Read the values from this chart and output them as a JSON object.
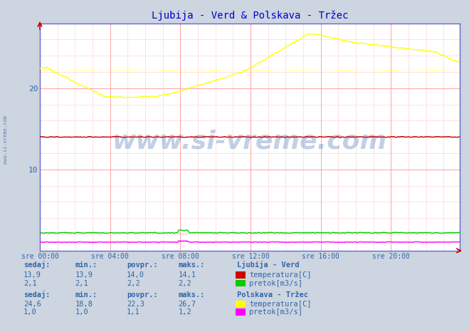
{
  "title": "Ljubija - Verd & Polskava - Tržec",
  "title_color": "#0000cc",
  "bg_color": "#ccd5e0",
  "plot_bg_color": "#ffffff",
  "grid_color_major": "#ff9999",
  "grid_color_minor": "#ffcccc",
  "tick_color": "#3366aa",
  "colors": {
    "ljubija_temp": "#cc0000",
    "ljubija_pretok": "#00cc00",
    "polskava_temp": "#ffff00",
    "polskava_pretok": "#ff00ff"
  },
  "axis_color": "#6666cc",
  "watermark": "www.si-vreme.com",
  "watermark_color": "#3366aa",
  "watermark_alpha": 0.3,
  "xlim": [
    0,
    287
  ],
  "ylim": [
    0,
    28
  ],
  "yticks": [
    10,
    20
  ],
  "xtick_labels": [
    "sre 00:00",
    "sre 04:00",
    "sre 08:00",
    "sre 12:00",
    "sre 16:00",
    "sre 20:00"
  ],
  "xtick_positions": [
    0,
    48,
    96,
    144,
    192,
    240
  ],
  "n_points": 288,
  "table": {
    "headers": [
      "sedaj:",
      "min.:",
      "povpr.:",
      "maks.:"
    ],
    "ljubija_title": "Ljubija - Verd",
    "ljubija_temp_vals": [
      "13,9",
      "13,9",
      "14,0",
      "14,1"
    ],
    "ljubija_pretok_vals": [
      "2,1",
      "2,1",
      "2,2",
      "2,2"
    ],
    "ljubija_temp_label": "temperatura[C]",
    "ljubija_pretok_label": "pretok[m3/s]",
    "polskava_title": "Polskava - Tržec",
    "polskava_temp_vals": [
      "24,6",
      "18,8",
      "22,3",
      "26,7"
    ],
    "polskava_pretok_vals": [
      "1,0",
      "1,0",
      "1,1",
      "1,2"
    ],
    "polskava_temp_label": "temperatura[C]",
    "polskava_pretok_label": "pretok[m3/s]"
  }
}
